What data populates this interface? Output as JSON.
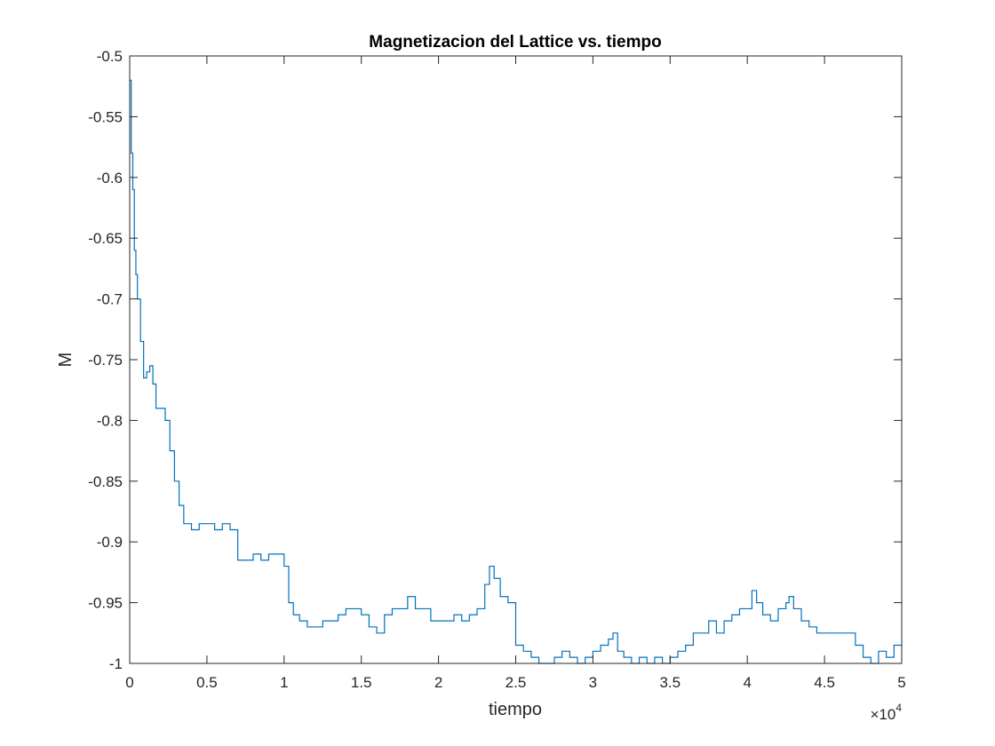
{
  "chart_data": {
    "type": "line",
    "title": "Magnetizacion del Lattice vs. tiempo",
    "xlabel": "tiempo",
    "ylabel": "M",
    "xlim": [
      0,
      50000
    ],
    "ylim": [
      -1,
      -0.5
    ],
    "x_ticks": [
      0,
      5000,
      10000,
      15000,
      20000,
      25000,
      30000,
      35000,
      40000,
      45000,
      50000
    ],
    "x_tick_labels": [
      "0",
      "0.5",
      "1",
      "1.5",
      "2",
      "2.5",
      "3",
      "3.5",
      "4",
      "4.5",
      "5"
    ],
    "x_exponent_multiplier": "×10",
    "x_exponent_power": "4",
    "y_ticks": [
      -1,
      -0.95,
      -0.9,
      -0.85,
      -0.8,
      -0.75,
      -0.7,
      -0.65,
      -0.6,
      -0.55,
      -0.5
    ],
    "y_tick_labels": [
      "-1",
      "-0.95",
      "-0.9",
      "-0.85",
      "-0.8",
      "-0.75",
      "-0.7",
      "-0.65",
      "-0.6",
      "-0.55",
      "-0.5"
    ],
    "grid": false,
    "legend": "none",
    "series": [
      {
        "color": "#0072BD",
        "x": [
          0,
          100,
          200,
          300,
          400,
          500,
          700,
          900,
          1100,
          1300,
          1500,
          1700,
          2000,
          2300,
          2600,
          2900,
          3200,
          3500,
          4000,
          4500,
          5000,
          5500,
          6000,
          6500,
          7000,
          7500,
          8000,
          8500,
          9000,
          9500,
          10000,
          10300,
          10600,
          11000,
          11500,
          12000,
          12500,
          13000,
          13500,
          14000,
          14500,
          15000,
          15500,
          16000,
          16500,
          17000,
          17500,
          18000,
          18500,
          19000,
          19500,
          20000,
          20500,
          21000,
          21500,
          22000,
          22500,
          23000,
          23300,
          23600,
          24000,
          24500,
          25000,
          25500,
          26000,
          26500,
          27000,
          27500,
          28000,
          28500,
          29000,
          29500,
          30000,
          30500,
          31000,
          31300,
          31600,
          32000,
          32500,
          33000,
          33500,
          34000,
          34500,
          35000,
          35500,
          36000,
          36500,
          37000,
          37500,
          38000,
          38500,
          39000,
          39500,
          40000,
          40300,
          40600,
          41000,
          41500,
          42000,
          42500,
          42700,
          43000,
          43500,
          44000,
          44500,
          45000,
          45500,
          46000,
          46500,
          47000,
          47500,
          48000,
          48500,
          49000,
          49500,
          50000
        ],
        "values": [
          -0.52,
          -0.58,
          -0.61,
          -0.66,
          -0.68,
          -0.7,
          -0.735,
          -0.765,
          -0.76,
          -0.755,
          -0.77,
          -0.79,
          -0.79,
          -0.8,
          -0.825,
          -0.85,
          -0.87,
          -0.885,
          -0.89,
          -0.885,
          -0.885,
          -0.89,
          -0.885,
          -0.89,
          -0.915,
          -0.915,
          -0.91,
          -0.915,
          -0.91,
          -0.91,
          -0.92,
          -0.95,
          -0.96,
          -0.965,
          -0.97,
          -0.97,
          -0.965,
          -0.965,
          -0.96,
          -0.955,
          -0.955,
          -0.96,
          -0.97,
          -0.975,
          -0.96,
          -0.955,
          -0.955,
          -0.945,
          -0.955,
          -0.955,
          -0.965,
          -0.965,
          -0.965,
          -0.96,
          -0.965,
          -0.96,
          -0.955,
          -0.935,
          -0.92,
          -0.93,
          -0.945,
          -0.95,
          -0.985,
          -0.99,
          -0.995,
          -1.0,
          -1.0,
          -0.995,
          -0.99,
          -0.995,
          -1.0,
          -0.995,
          -0.99,
          -0.985,
          -0.98,
          -0.975,
          -0.99,
          -0.995,
          -1.0,
          -0.995,
          -1.0,
          -0.995,
          -1.0,
          -0.995,
          -0.99,
          -0.985,
          -0.975,
          -0.975,
          -0.965,
          -0.975,
          -0.965,
          -0.96,
          -0.955,
          -0.955,
          -0.94,
          -0.95,
          -0.96,
          -0.965,
          -0.955,
          -0.95,
          -0.945,
          -0.955,
          -0.965,
          -0.97,
          -0.975,
          -0.975,
          -0.975,
          -0.975,
          -0.975,
          -0.985,
          -0.995,
          -1.0,
          -0.99,
          -0.995,
          -0.985,
          -0.985
        ]
      }
    ]
  }
}
